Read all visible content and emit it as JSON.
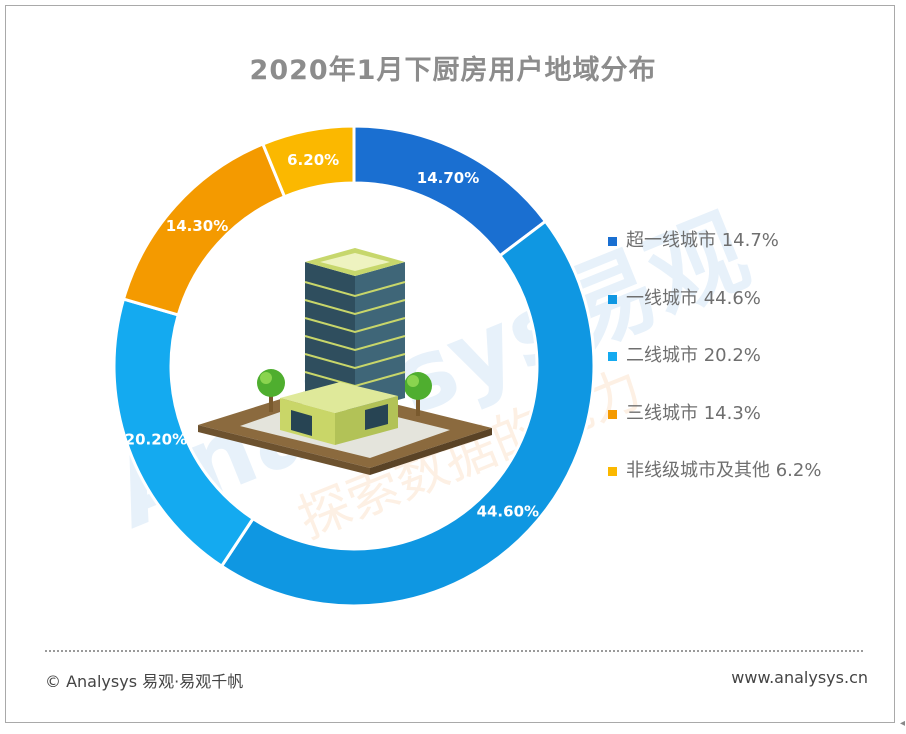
{
  "chart_data": {
    "type": "pie",
    "title": "2020年1月下厨房用户地域分布",
    "donut": true,
    "legend_position": "right",
    "categories": [
      "超一线城市",
      "一线城市",
      "二线城市",
      "三线城市",
      "非线级城市及其他"
    ],
    "values": [
      14.7,
      44.6,
      20.2,
      14.3,
      6.2
    ],
    "slice_labels": [
      "14.70%",
      "44.60%",
      "20.20%",
      "14.30%",
      "6.20%"
    ],
    "legend_entries": [
      "超一线城市 14.7%",
      "一线城市 44.6%",
      "二线城市 20.2%",
      "三线城市 14.3%",
      "非线级城市及其他 6.2%"
    ],
    "colors": [
      "#1a6fd1",
      "#0f97e2",
      "#14aaf0",
      "#f49a00",
      "#fbb800"
    ]
  },
  "footer": {
    "copyright": "© Analysys 易观·易观千帆",
    "website": "www.analysys.cn"
  },
  "watermark": {
    "text": "Analysys易观",
    "slogan": "探索数据的能力",
    "color": "#e9f3fb"
  },
  "icons": {
    "center": "office-building-icon"
  }
}
